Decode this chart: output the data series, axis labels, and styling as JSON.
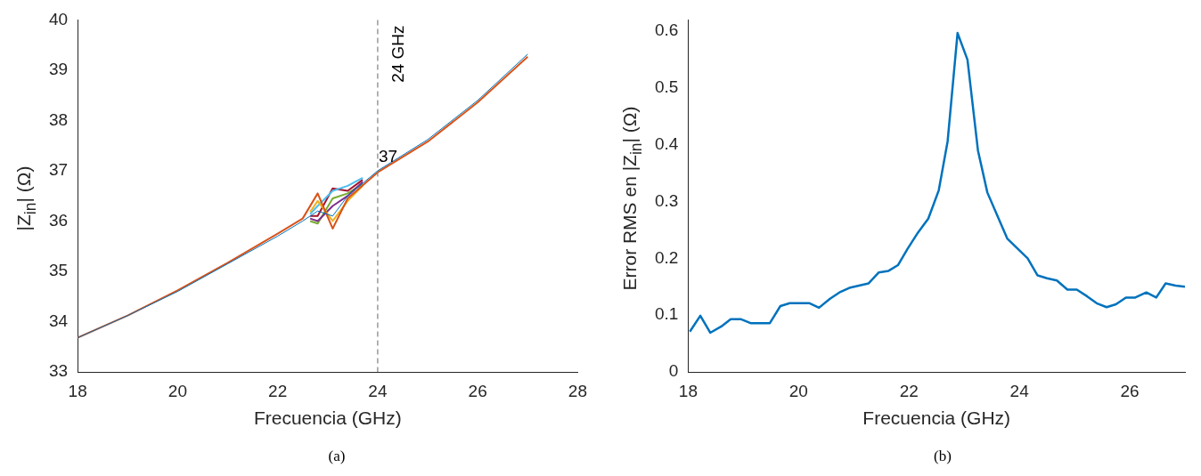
{
  "chart_data": [
    {
      "type": "line",
      "xlabel": "Frecuencia (GHz)",
      "ylabel": "|Z$_{in}$| (Ω)",
      "x": [
        18,
        19,
        20,
        21,
        22,
        22.5,
        22.8,
        23.1,
        23.4,
        24,
        25,
        26,
        27
      ],
      "series": [
        {
          "color": "#0072bd",
          "values": [
            33.68,
            34.12,
            34.6,
            35.15,
            35.7,
            36.0,
            36.2,
            36.1,
            36.5,
            37.0,
            37.62,
            38.4,
            39.32
          ]
        },
        {
          "color": "#d95319",
          "values": [
            33.68,
            34.12,
            34.62,
            35.17,
            35.75,
            36.05,
            36.55,
            35.85,
            36.45,
            36.97,
            37.58,
            38.36,
            39.27
          ]
        },
        {
          "color": "#edb120",
          "x": [
            22.65,
            22.8,
            23.1,
            23.4,
            23.7
          ],
          "values": [
            36.18,
            36.4,
            36.0,
            36.4,
            36.7
          ]
        },
        {
          "color": "#7e2f8e",
          "x": [
            22.65,
            22.8,
            23.1,
            23.4,
            23.7
          ],
          "values": [
            36.05,
            36.0,
            36.3,
            36.5,
            36.78
          ]
        },
        {
          "color": "#77ac30",
          "x": [
            22.65,
            22.8,
            23.1,
            23.4,
            23.7
          ],
          "values": [
            36.0,
            35.95,
            36.45,
            36.55,
            36.74
          ]
        },
        {
          "color": "#4dbeee",
          "x": [
            22.65,
            22.8,
            23.1,
            23.4,
            23.7
          ],
          "values": [
            36.14,
            36.3,
            36.6,
            36.7,
            36.86
          ]
        },
        {
          "color": "#a2142f",
          "x": [
            22.65,
            22.8,
            23.1,
            23.4,
            23.7
          ],
          "values": [
            36.1,
            36.1,
            36.65,
            36.6,
            36.82
          ]
        }
      ],
      "xlim": [
        18,
        28
      ],
      "xticks": [
        18,
        20,
        22,
        24,
        26,
        28
      ],
      "ylim": [
        33,
        40
      ],
      "yticks": [
        33,
        34,
        35,
        36,
        37,
        38,
        39,
        40
      ],
      "grid": false,
      "legend": false,
      "marker": "none",
      "line_style": "solid",
      "ref_lines": [
        {
          "axis": "x",
          "value": 24,
          "label": "24 GHz",
          "color": "#808080",
          "line_style": "dashed"
        }
      ],
      "annotations": [
        "(a)",
        {
          "text": "37",
          "x": 24,
          "y": 37
        }
      ]
    },
    {
      "type": "line",
      "xlabel": "Frecuencia (GHz)",
      "ylabel": "Error RMS en |Z$_{in}$| (Ω)",
      "x": [
        18.03,
        18.22,
        18.4,
        18.6,
        18.77,
        18.95,
        19.13,
        19.48,
        19.67,
        19.84,
        20.2,
        20.37,
        20.57,
        20.74,
        20.92,
        21.27,
        21.45,
        21.63,
        21.8,
        21.97,
        22.16,
        22.35,
        22.54,
        22.7,
        22.88,
        23.06,
        23.25,
        23.42,
        23.78,
        24.15,
        24.33,
        24.5,
        24.68,
        24.87,
        25.04,
        25.23,
        25.4,
        25.58,
        25.75,
        25.93,
        26.1,
        26.3,
        26.48,
        26.65,
        26.83,
        27.0
      ],
      "series": [
        {
          "color": "#0072bd",
          "values": [
            0.071,
            0.099,
            0.069,
            0.08,
            0.093,
            0.093,
            0.086,
            0.086,
            0.116,
            0.121,
            0.121,
            0.113,
            0.129,
            0.14,
            0.148,
            0.156,
            0.175,
            0.178,
            0.188,
            0.216,
            0.245,
            0.27,
            0.32,
            0.406,
            0.597,
            0.55,
            0.39,
            0.316,
            0.235,
            0.2,
            0.17,
            0.165,
            0.161,
            0.145,
            0.145,
            0.133,
            0.121,
            0.114,
            0.119,
            0.131,
            0.131,
            0.14,
            0.131,
            0.156,
            0.152,
            0.15
          ]
        }
      ],
      "xlim": [
        18,
        27
      ],
      "xticks": [
        18,
        20,
        22,
        24,
        26
      ],
      "ylim": [
        0,
        0.62
      ],
      "yticks": [
        0,
        0.1,
        0.2,
        0.3,
        0.4,
        0.5,
        0.6
      ],
      "grid": false,
      "legend": false,
      "marker": "none",
      "line_style": "solid",
      "annotations": [
        "(b)"
      ]
    }
  ]
}
